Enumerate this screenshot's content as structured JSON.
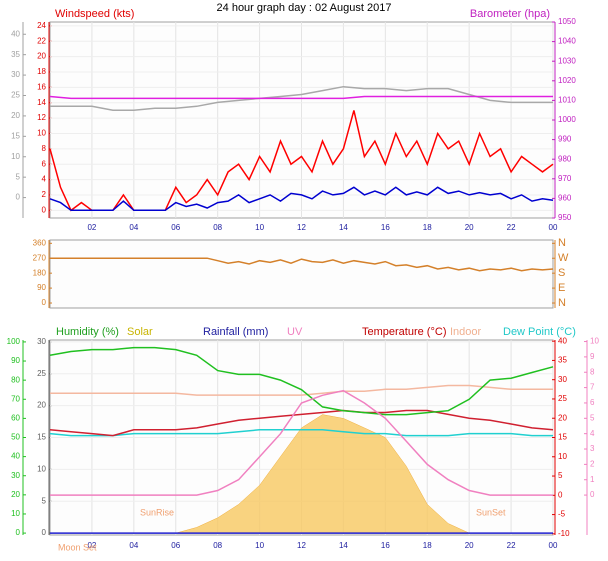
{
  "title": "24 hour graph day : 02 August 2017",
  "chart_data": [
    {
      "type": "line",
      "grid": true,
      "labels": [
        {
          "text": "Windspeed (kts)",
          "color": "#e00000"
        },
        {
          "text": "Barometer (hpa)",
          "color": "#c020c0"
        }
      ],
      "xlim": [
        0,
        24
      ],
      "xticks": [
        {
          "value": 2,
          "label": "02"
        },
        {
          "value": 4,
          "label": "04"
        },
        {
          "value": 6,
          "label": "06"
        },
        {
          "value": 8,
          "label": "08"
        },
        10,
        12,
        14,
        16,
        18,
        20,
        22,
        {
          "value": 24,
          "label": "00"
        }
      ],
      "axes": [
        {
          "side": "left",
          "color": "#e00000",
          "ylim": [
            -1,
            24.5
          ],
          "yticks": [
            0,
            2,
            4,
            6,
            8,
            10,
            12,
            14,
            16,
            18,
            20,
            22,
            24
          ]
        },
        {
          "side": "left",
          "color": "#a0a0a0",
          "ylim": [
            -5,
            43
          ],
          "yticks": [
            0,
            5,
            10,
            15,
            20,
            25,
            30,
            35,
            40
          ]
        },
        {
          "side": "right",
          "color": "#c020c0",
          "ylim": [
            950,
            1050
          ],
          "yticks": [
            950,
            960,
            970,
            980,
            990,
            1000,
            1010,
            1020,
            1030,
            1040,
            1050
          ]
        }
      ],
      "series": [
        {
          "type": "line",
          "color": "#a8a8a8",
          "axis": 2,
          "x": [
            0,
            1,
            2,
            3,
            4,
            5,
            6,
            7,
            8,
            9,
            10,
            11,
            12,
            13,
            14,
            15,
            16,
            17,
            18,
            19,
            20,
            21,
            22,
            23,
            24
          ],
          "values": [
            1007,
            1007,
            1007,
            1005,
            1005,
            1006,
            1006,
            1007,
            1009,
            1010,
            1011,
            1012,
            1013,
            1015,
            1017,
            1016,
            1016,
            1015,
            1016,
            1016,
            1013,
            1010,
            1009,
            1009,
            1009
          ]
        },
        {
          "type": "line",
          "color": "#e020e0",
          "axis": 2,
          "x": [
            0,
            1,
            2,
            3,
            4,
            5,
            6,
            7,
            8,
            9,
            10,
            11,
            12,
            13,
            14,
            15,
            16,
            17,
            18,
            19,
            20,
            21,
            22,
            23,
            24
          ],
          "values": [
            1012,
            1011,
            1011,
            1011,
            1011,
            1011,
            1011,
            1011,
            1011,
            1011,
            1011,
            1011,
            1011,
            1011,
            1011,
            1012,
            1012,
            1012,
            1012,
            1012,
            1012,
            1012,
            1012,
            1012,
            1012
          ]
        },
        {
          "type": "line",
          "color": "#ff0000",
          "axis": 0,
          "x": [
            0,
            0.5,
            1,
            1.5,
            2,
            2.5,
            3,
            3.5,
            4,
            4.5,
            5,
            5.5,
            6,
            6.5,
            7,
            7.5,
            8,
            8.5,
            9,
            9.5,
            10,
            10.5,
            11,
            11.5,
            12,
            12.5,
            13,
            13.5,
            14,
            14.5,
            15,
            15.5,
            16,
            16.5,
            17,
            17.5,
            18,
            18.5,
            19,
            19.5,
            20,
            20.5,
            21,
            21.5,
            22,
            22.5,
            23,
            23.5,
            24
          ],
          "values": [
            8,
            3,
            0,
            1,
            0,
            0,
            0,
            2,
            0,
            0,
            0,
            0,
            3,
            1,
            2,
            4,
            2,
            5,
            6,
            4,
            7,
            5,
            9,
            6,
            7,
            5,
            9,
            6,
            8,
            13,
            7,
            9,
            6,
            10,
            7,
            9,
            6,
            10,
            8,
            9,
            6,
            10,
            7,
            8,
            5,
            7,
            6,
            5,
            6
          ]
        },
        {
          "type": "line",
          "color": "#0000d0",
          "axis": 0,
          "x": [
            0,
            0.5,
            1,
            1.5,
            2,
            2.5,
            3,
            3.5,
            4,
            4.5,
            5,
            5.5,
            6,
            6.5,
            7,
            7.5,
            8,
            8.5,
            9,
            9.5,
            10,
            10.5,
            11,
            11.5,
            12,
            12.5,
            13,
            13.5,
            14,
            14.5,
            15,
            15.5,
            16,
            16.5,
            17,
            17.5,
            18,
            18.5,
            19,
            19.5,
            20,
            20.5,
            21,
            21.5,
            22,
            22.5,
            23,
            23.5,
            24
          ],
          "values": [
            1.5,
            1,
            0,
            0,
            0,
            0,
            0,
            1.2,
            0,
            0,
            0,
            0,
            1,
            0.5,
            0.8,
            0.3,
            1,
            1.2,
            2,
            1,
            1.5,
            2,
            1.2,
            2.2,
            2,
            1.5,
            2.5,
            2,
            2.2,
            3,
            2,
            2.5,
            2,
            3,
            2,
            2.4,
            2,
            3,
            2.2,
            2.5,
            2,
            2.3,
            2,
            2.2,
            1.5,
            2,
            1.2,
            1.5,
            1.3
          ]
        }
      ]
    },
    {
      "type": "line",
      "grid": false,
      "xlim": [
        0,
        24
      ],
      "axes": [
        {
          "side": "left",
          "color": "#d4802a",
          "ylim": [
            -30,
            380
          ],
          "yticks": [
            0,
            90,
            180,
            270,
            360
          ]
        },
        {
          "side": "right",
          "color": "#d4802a",
          "ylim": [
            -30,
            380
          ],
          "yticks": [
            {
              "value": 360,
              "label": "N"
            },
            {
              "value": 270,
              "label": "W"
            },
            {
              "value": 180,
              "label": "S"
            },
            {
              "value": 90,
              "label": "E"
            },
            {
              "value": 0,
              "label": "N"
            }
          ]
        }
      ],
      "series": [
        {
          "type": "line",
          "color": "#d4802a",
          "axis": 0,
          "x": [
            0,
            0.5,
            1,
            1.5,
            2,
            2.5,
            3,
            3.5,
            4,
            4.5,
            5,
            5.5,
            6,
            6.5,
            7,
            7.5,
            8,
            8.5,
            9,
            9.5,
            10,
            10.5,
            11,
            11.5,
            12,
            12.5,
            13,
            13.5,
            14,
            14.5,
            15,
            15.5,
            16,
            16.5,
            17,
            17.5,
            18,
            18.5,
            19,
            19.5,
            20,
            20.5,
            21,
            21.5,
            22,
            22.5,
            23,
            23.5,
            24
          ],
          "values": [
            270,
            270,
            270,
            270,
            270,
            270,
            270,
            270,
            270,
            270,
            270,
            270,
            270,
            270,
            270,
            270,
            255,
            240,
            250,
            235,
            255,
            245,
            260,
            240,
            265,
            250,
            245,
            260,
            240,
            255,
            245,
            235,
            250,
            225,
            230,
            215,
            225,
            205,
            215,
            200,
            210,
            195,
            205,
            200,
            210,
            195,
            205,
            200,
            205
          ]
        }
      ]
    },
    {
      "type": "line",
      "grid": true,
      "labels": [
        {
          "text": "Humidity (%)",
          "color": "#20a020"
        },
        {
          "text": "Solar",
          "color": "#c8b400"
        },
        {
          "text": "Rainfall (mm)",
          "color": "#2020a0"
        },
        {
          "text": "UV",
          "color": "#f080c0"
        },
        {
          "text": "Temperature (°C)",
          "color": "#c00000"
        },
        {
          "text": "Indoor",
          "color": "#f0b090"
        },
        {
          "text": "Dew Point (°C)",
          "color": "#20c8c8"
        }
      ],
      "annotations": [
        "SunRise",
        "SunSet",
        "Moon Set"
      ],
      "xlim": [
        0,
        24
      ],
      "xticks": [
        {
          "value": 2,
          "label": "02"
        },
        {
          "value": 4,
          "label": "04"
        },
        {
          "value": 6,
          "label": "06"
        },
        {
          "value": 8,
          "label": "08"
        },
        10,
        12,
        14,
        16,
        18,
        20,
        22,
        {
          "value": 24,
          "label": "00"
        }
      ],
      "axes": [
        {
          "side": "left",
          "color": "#606060",
          "ylim": [
            -0.3,
            30.3
          ],
          "yticks": [
            0,
            5,
            10,
            15,
            20,
            25,
            30
          ]
        },
        {
          "side": "left",
          "color": "#20c020",
          "ylim": [
            -1,
            101
          ],
          "yticks": [
            0,
            10,
            20,
            30,
            40,
            50,
            60,
            70,
            80,
            90,
            100
          ]
        },
        {
          "side": "right",
          "color": "#e00000",
          "ylim": [
            -10.3,
            40.3
          ],
          "yticks": [
            -10,
            -5,
            0,
            5,
            10,
            15,
            20,
            25,
            30,
            35,
            40
          ]
        },
        {
          "side": "right",
          "color": "#f080c0",
          "ylim": [
            -2.6,
            10.1
          ],
          "yticks": [
            0,
            1,
            2,
            3,
            4,
            5,
            6,
            7,
            8,
            9,
            10
          ]
        }
      ],
      "series": [
        {
          "type": "area",
          "color": "#f8c860",
          "axis": 1,
          "x": [
            0,
            1,
            2,
            3,
            4,
            5,
            6,
            7,
            8,
            9,
            10,
            11,
            12,
            13,
            14,
            15,
            16,
            17,
            18,
            19,
            20,
            21,
            22,
            23,
            24
          ],
          "values": [
            0,
            0,
            0,
            0,
            0,
            0,
            0,
            3,
            8,
            15,
            25,
            40,
            55,
            62,
            60,
            55,
            50,
            35,
            15,
            5,
            0,
            0,
            0,
            0,
            0
          ]
        },
        {
          "type": "line",
          "color": "#f4b8a0",
          "axis": 2,
          "x": [
            0,
            1,
            2,
            3,
            4,
            5,
            6,
            7,
            8,
            9,
            10,
            11,
            12,
            13,
            14,
            15,
            16,
            17,
            18,
            19,
            20,
            21,
            22,
            23,
            24
          ],
          "values": [
            26.5,
            26.5,
            26.5,
            26.5,
            26.5,
            26.5,
            26.5,
            26,
            26,
            26,
            26,
            26,
            26,
            26.5,
            27,
            27,
            27.5,
            27.5,
            28,
            28.5,
            28.5,
            28,
            27.5,
            27.5,
            27.5
          ]
        },
        {
          "type": "line",
          "color": "#20d0d0",
          "axis": 2,
          "x": [
            0,
            1,
            2,
            3,
            4,
            5,
            6,
            7,
            8,
            9,
            10,
            11,
            12,
            13,
            14,
            15,
            16,
            17,
            18,
            19,
            20,
            21,
            22,
            23,
            24
          ],
          "values": [
            16,
            15.5,
            15.5,
            15.5,
            16,
            16,
            16,
            16,
            16,
            16.5,
            17,
            17,
            17,
            17,
            16.5,
            16,
            16,
            15.5,
            15.5,
            15.5,
            16,
            16,
            16,
            15.5,
            15.5
          ]
        },
        {
          "type": "line",
          "color": "#d02030",
          "axis": 2,
          "x": [
            0,
            1,
            2,
            3,
            4,
            5,
            6,
            7,
            8,
            9,
            10,
            11,
            12,
            13,
            14,
            15,
            16,
            17,
            18,
            19,
            20,
            21,
            22,
            23,
            24
          ],
          "values": [
            17,
            16.5,
            16,
            15.5,
            17,
            17,
            17,
            17.5,
            18.5,
            19.5,
            20,
            20.5,
            21,
            21.5,
            22,
            21.5,
            21.5,
            22,
            22,
            21,
            20,
            19.5,
            18.5,
            17.5,
            17
          ]
        },
        {
          "type": "line",
          "color": "#20c020",
          "axis": 1,
          "x": [
            0,
            1,
            2,
            3,
            4,
            5,
            6,
            7,
            8,
            9,
            10,
            11,
            12,
            13,
            14,
            15,
            16,
            17,
            18,
            19,
            20,
            21,
            22,
            23,
            24
          ],
          "values": [
            93,
            95,
            96,
            96,
            97,
            97,
            96,
            93,
            85,
            83,
            83,
            80,
            75,
            66,
            64,
            63,
            62,
            62,
            63,
            64,
            70,
            80,
            81,
            84,
            87
          ]
        },
        {
          "type": "line",
          "color": "#f080c0",
          "axis": 3,
          "x": [
            0,
            1,
            2,
            3,
            4,
            5,
            6,
            7,
            8,
            9,
            10,
            11,
            12,
            13,
            14,
            15,
            16,
            17,
            18,
            19,
            20,
            21,
            22,
            23,
            24
          ],
          "values": [
            0,
            0,
            0,
            0,
            0,
            0,
            0,
            0,
            0.3,
            1,
            2.5,
            4,
            6,
            6.5,
            6.8,
            6,
            5,
            3.5,
            2,
            1,
            0.3,
            0,
            0,
            0,
            0
          ]
        },
        {
          "type": "line",
          "color": "#2020d0",
          "axis": 0,
          "x": [
            0,
            1,
            2,
            3,
            4,
            5,
            6,
            7,
            8,
            9,
            10,
            11,
            12,
            13,
            14,
            15,
            16,
            17,
            18,
            19,
            20,
            21,
            22,
            23,
            24
          ],
          "values": [
            0,
            0,
            0,
            0,
            0,
            0,
            0,
            0,
            0,
            0,
            0,
            0,
            0,
            0,
            0,
            0,
            0,
            0,
            0,
            0,
            0,
            0,
            0,
            0,
            0
          ]
        }
      ]
    }
  ]
}
